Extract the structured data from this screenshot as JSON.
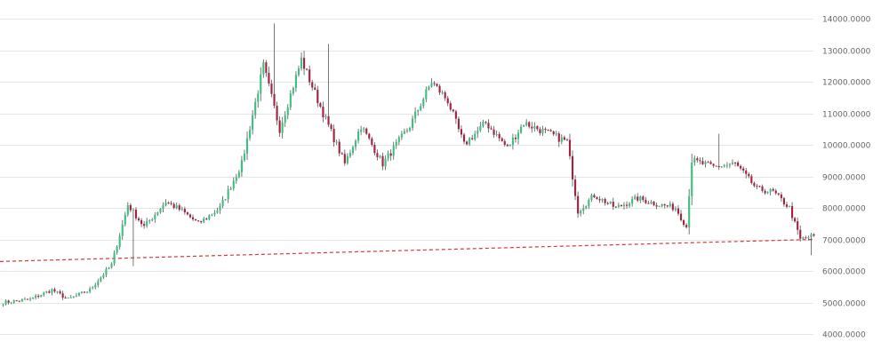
{
  "chart_data": {
    "type": "candlestick",
    "title": "",
    "xlabel": "",
    "ylabel": "",
    "ylim": [
      3950,
      14050
    ],
    "y_ticks": [
      "14000.0000",
      "13000.0000",
      "12000.0000",
      "11000.0000",
      "10000.0000",
      "9000.0000",
      "8000.0000",
      "7000.0000",
      "6000.0000",
      "5000.0000",
      "4000.0000"
    ],
    "y_tick_values": [
      14000,
      13000,
      12000,
      11000,
      10000,
      9000,
      8000,
      7000,
      6000,
      5000,
      4000
    ],
    "grid": true,
    "legend": "none",
    "colors": {
      "up": "#3fbf7f",
      "down": "#a4223f",
      "grid": "#e6e6e6",
      "trendline": "#d63a3a",
      "wick": "#555555"
    },
    "trendline": {
      "start_value": 6300,
      "end_value": 7000,
      "style": "dashed"
    },
    "anchors": [
      [
        0,
        5000
      ],
      [
        10,
        5100
      ],
      [
        18,
        5400
      ],
      [
        24,
        5100
      ],
      [
        32,
        5400
      ],
      [
        40,
        6200
      ],
      [
        46,
        8100
      ],
      [
        52,
        7400
      ],
      [
        60,
        8200
      ],
      [
        66,
        7900
      ],
      [
        72,
        7500
      ],
      [
        80,
        8000
      ],
      [
        88,
        9400
      ],
      [
        96,
        12500
      ],
      [
        102,
        10500
      ],
      [
        110,
        12700
      ],
      [
        118,
        11000
      ],
      [
        126,
        9400
      ],
      [
        132,
        10600
      ],
      [
        140,
        9400
      ],
      [
        150,
        10600
      ],
      [
        158,
        12000
      ],
      [
        164,
        11400
      ],
      [
        170,
        10000
      ],
      [
        178,
        10700
      ],
      [
        186,
        9900
      ],
      [
        192,
        10700
      ],
      [
        200,
        10400
      ],
      [
        208,
        10100
      ],
      [
        212,
        7900
      ],
      [
        218,
        8400
      ],
      [
        226,
        8000
      ],
      [
        234,
        8300
      ],
      [
        242,
        8100
      ],
      [
        248,
        8000
      ],
      [
        252,
        7400
      ],
      [
        254,
        9500
      ],
      [
        262,
        9300
      ],
      [
        270,
        9400
      ],
      [
        278,
        8600
      ],
      [
        284,
        8500
      ],
      [
        290,
        8000
      ],
      [
        294,
        7000
      ],
      [
        298,
        7100
      ]
    ],
    "candles": 300
  }
}
